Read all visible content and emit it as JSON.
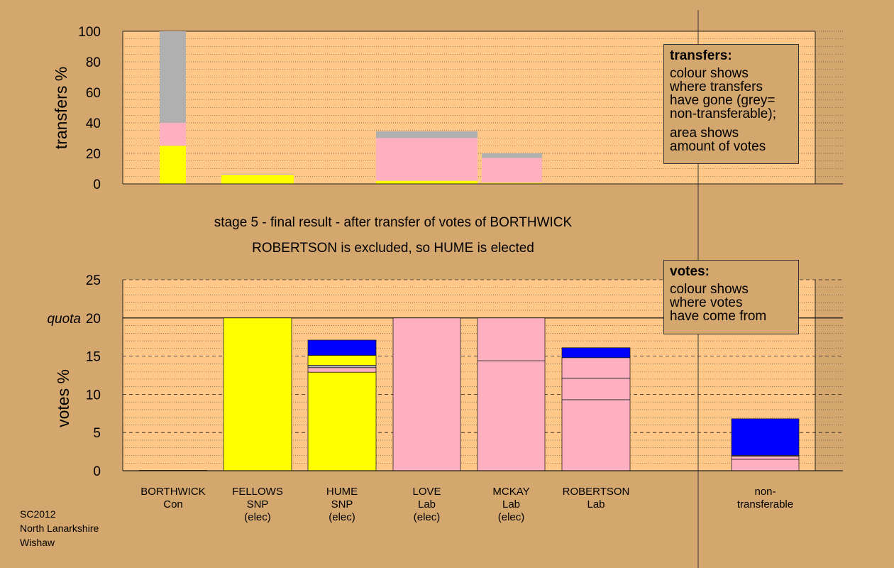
{
  "chart_data": [
    {
      "type": "bar",
      "stacked": true,
      "ylabel": "transfers %",
      "ylim": [
        0,
        100
      ],
      "yticks": [
        0,
        20,
        40,
        60,
        80,
        100
      ],
      "grid": "dotted",
      "bars": [
        {
          "key": "BORTHWICK",
          "segments": [
            {
              "color": "yellow",
              "value": 25
            },
            {
              "color": "pink",
              "value": 15
            },
            {
              "color": "grey",
              "value": 60
            }
          ]
        },
        {
          "key": "FELLOWS",
          "segments": [
            {
              "color": "yellow",
              "value": 6
            },
            {
              "color": "pink",
              "value": 0.3
            },
            {
              "color": "grey",
              "value": 0.3
            }
          ]
        },
        {
          "key": "HUME",
          "segments": []
        },
        {
          "key": "LOVE",
          "segments": [
            {
              "color": "yellow",
              "value": 2
            },
            {
              "color": "pink",
              "value": 28
            },
            {
              "color": "grey",
              "value": 4.5
            }
          ]
        },
        {
          "key": "MCKAY",
          "segments": [
            {
              "color": "yellow",
              "value": 0.7
            },
            {
              "color": "pink",
              "value": 16.3
            },
            {
              "color": "grey",
              "value": 3
            }
          ]
        },
        {
          "key": "ROBERTSON",
          "segments": []
        }
      ]
    },
    {
      "type": "bar",
      "stacked": true,
      "ylabel": "votes %",
      "ylim": [
        0,
        25
      ],
      "yticks": [
        0,
        5,
        10,
        15,
        20,
        25
      ],
      "quota": 20,
      "quota_label": "quota",
      "grid": "dotted",
      "bars": [
        {
          "key": "BORTHWICK",
          "segments": [
            {
              "color": "pink",
              "value": 0.05
            }
          ]
        },
        {
          "key": "FELLOWS",
          "segments": [
            {
              "color": "yellow",
              "value": 20
            }
          ]
        },
        {
          "key": "HUME",
          "segments": [
            {
              "color": "yellow",
              "value": 12.9
            },
            {
              "color": "pink",
              "value": 0.6
            },
            {
              "color": "grey",
              "value": 0.3
            },
            {
              "color": "yellow",
              "value": 1.3
            },
            {
              "color": "blue",
              "value": 2.0
            }
          ]
        },
        {
          "key": "LOVE",
          "segments": [
            {
              "color": "pink",
              "value": 20
            }
          ]
        },
        {
          "key": "MCKAY",
          "segments": [
            {
              "color": "pink",
              "value": 14.4
            },
            {
              "color": "pink",
              "value": 5.6
            }
          ]
        },
        {
          "key": "ROBERTSON",
          "segments": [
            {
              "color": "pink",
              "value": 9.3
            },
            {
              "color": "pink",
              "value": 2.8
            },
            {
              "color": "pink",
              "value": 2.7
            },
            {
              "color": "blue",
              "value": 1.3
            }
          ]
        },
        {
          "key": "NONTRANSFERABLE",
          "segments": [
            {
              "color": "pink",
              "value": 1.5
            },
            {
              "color": "pink",
              "value": 0.4
            },
            {
              "color": "grey",
              "value": 0.1
            },
            {
              "color": "blue",
              "value": 4.8
            }
          ]
        }
      ]
    }
  ],
  "colors": {
    "yellow": "#ffff00",
    "pink": "#ffb0c0",
    "grey": "#b0b0b0",
    "blue": "#0000ff",
    "plot_bg": "#ffc888",
    "page_bg": "#d4a76e"
  },
  "candidates": [
    {
      "key": "BORTHWICK",
      "name": "BORTHWICK",
      "party": "Con",
      "status": ""
    },
    {
      "key": "FELLOWS",
      "name": "FELLOWS",
      "party": "SNP",
      "status": "(elec)"
    },
    {
      "key": "HUME",
      "name": "HUME",
      "party": "SNP",
      "status": "(elec)"
    },
    {
      "key": "LOVE",
      "name": "LOVE",
      "party": "Lab",
      "status": "(elec)"
    },
    {
      "key": "MCKAY",
      "name": "MCKAY",
      "party": "Lab",
      "status": "(elec)"
    },
    {
      "key": "ROBERTSON",
      "name": "ROBERTSON",
      "party": "Lab",
      "status": ""
    },
    {
      "key": "NONTRANSFERABLE",
      "name": "non-",
      "party": "transferable",
      "status": ""
    }
  ],
  "stage_title": "stage 5 - final result - after transfer of votes of BORTHWICK",
  "stage_subtitle": "ROBERTSON is excluded, so HUME is elected",
  "transfers_legend": {
    "title": "transfers:",
    "body": "colour shows\nwhere transfers\nhave gone (grey=\nnon-transferable);",
    "body2": "area shows\namount of votes"
  },
  "votes_legend": {
    "title": "votes:",
    "body": "colour shows\nwhere votes\nhave come from"
  },
  "footer": {
    "line1": "SC2012",
    "line2": "North Lanarkshire",
    "line3": "Wishaw"
  }
}
